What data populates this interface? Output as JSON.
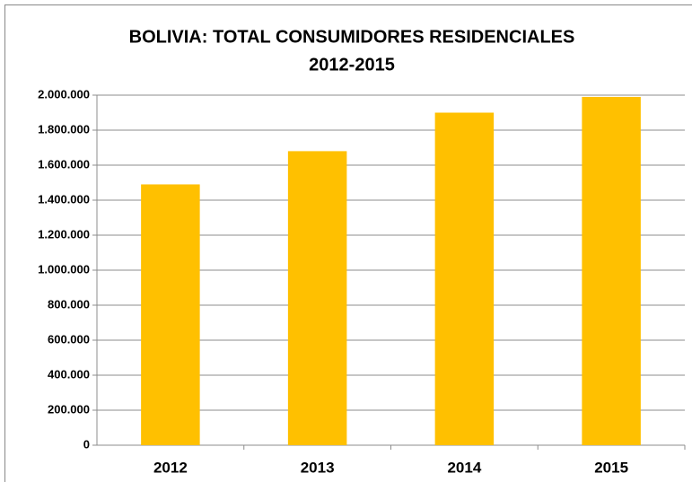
{
  "chart_data": {
    "type": "bar",
    "title": "BOLIVIA: TOTAL CONSUMIDORES RESIDENCIALES",
    "subtitle": "2012-2015",
    "categories": [
      "2012",
      "2013",
      "2014",
      "2015"
    ],
    "values": [
      1490000,
      1680000,
      1900000,
      1990000
    ],
    "color": "#ffc000",
    "ylim": [
      0,
      2000000
    ],
    "yticks": [
      0,
      {
        "value": 200000,
        "label": "200.000"
      },
      {
        "value": 400000,
        "label": "400.000"
      },
      {
        "value": 600000,
        "label": "600.000"
      },
      {
        "value": 800000,
        "label": "800.000"
      },
      {
        "value": 1000000,
        "label": "1.000.000"
      },
      {
        "value": 1200000,
        "label": "1.200.000"
      },
      {
        "value": 1400000,
        "label": "1.400.000"
      },
      {
        "value": 1600000,
        "label": "1.600.000"
      },
      {
        "value": 1800000,
        "label": "1.800.000"
      },
      {
        "value": 2000000,
        "label": "2.000.000"
      }
    ],
    "grid": true
  }
}
